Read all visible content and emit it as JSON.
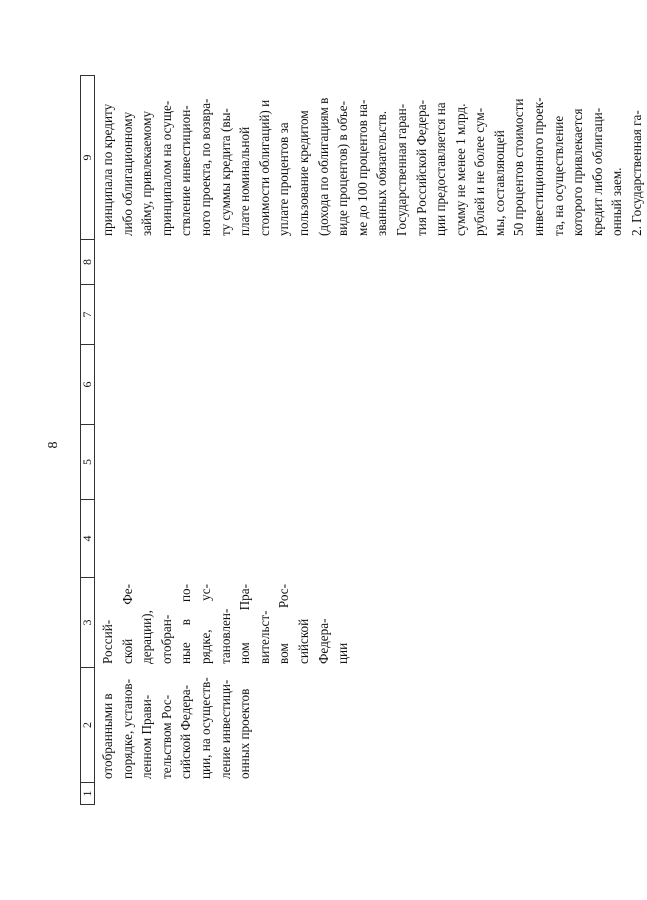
{
  "page_number": "8",
  "table": {
    "headers": [
      "1",
      "2",
      "3",
      "4",
      "5",
      "6",
      "7",
      "8",
      "9"
    ],
    "col2_lines": [
      "отобранными в",
      "порядке, установ-",
      "ленном Прави-",
      "тельством Рос-",
      "сийской Федера-",
      "ции, на осуществ-",
      "ление инвестици-",
      "онных проектов"
    ],
    "col3_lines": [
      "Россий-",
      "ской Фе-",
      "дерации),",
      "отобран-",
      "ные в по-",
      "рядке, ус-",
      "тановлен-",
      "ном Пра-",
      "вительст-",
      "вом Рос-",
      "сийской",
      "Федера-",
      "ции"
    ],
    "col9_lines": [
      "принципала по кредиту",
      "либо облигационному",
      "займу, привлекаемому",
      "принципалом на осуще-",
      "ствление инвестицион-",
      "ного проекта, по возвра-",
      "ту суммы кредита (вы-",
      "плате номинальной",
      "стоимости облигаций) и",
      "уплате процентов за",
      "пользование кредитом",
      "(дохода по облигациям в",
      "виде процентов) в объе-",
      "ме до 100 процентов на-",
      "званных обязательств.",
      "Государственная гаран-",
      "тия Российской Федера-",
      "ции предоставляется на",
      "сумму не менее 1 млрд.",
      "рублей и не более сум-",
      "мы, составляющей",
      "50 процентов стоимости",
      "инвестиционного проек-",
      "та, на осуществление",
      "которого привлекается",
      "кредит либо облигаци-",
      "онный заем.",
      "2. Государственная га-"
    ]
  }
}
